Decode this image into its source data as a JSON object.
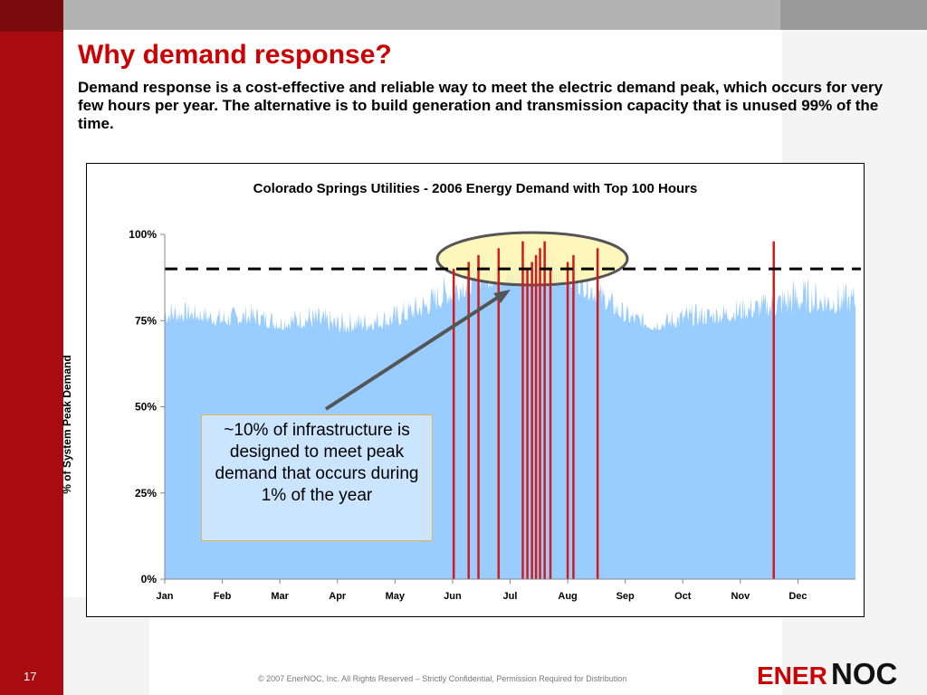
{
  "slide": {
    "title": "Why demand response?",
    "subtitle": "Demand response is a cost-effective and reliable way to meet the electric demand peak, which occurs for very few hours per year. The alternative is to build generation and transmission capacity that is unused 99% of the time.",
    "callout": "~10% of infrastructure is designed to meet peak demand that occurs during 1% of the year",
    "page_number": "17",
    "copyright": "© 2007 EnerNOC, Inc. All Rights Reserved – Strictly Confidential, Permission Required for Distribution",
    "logo_left": "ENER",
    "logo_right": "NOC"
  },
  "colors": {
    "brand_red": "#cc0000",
    "demand_fill": "#99ccff",
    "peak_bar": "#d41a1a",
    "highlight_ellipse": "#fdf6b5"
  },
  "chart_data": {
    "type": "area",
    "title": "Colorado Springs Utilities - 2006 Energy Demand with Top 100 Hours",
    "ylabel": "% of System Peak Demand",
    "xlabel": "",
    "ylim": [
      0,
      100
    ],
    "yticks": [
      "0%",
      "25%",
      "50%",
      "75%",
      "100%"
    ],
    "categories": [
      "Jan",
      "Feb",
      "Mar",
      "Apr",
      "May",
      "Jun",
      "Jul",
      "Aug",
      "Sep",
      "Oct",
      "Nov",
      "Dec"
    ],
    "series": [
      {
        "month": [
          1,
          1.5,
          2,
          2.5,
          3,
          3.5,
          4,
          4.5,
          5,
          5.5,
          6,
          6.5,
          7,
          7.5,
          8,
          8.5,
          9,
          9.5,
          10,
          10.5,
          11,
          11.5,
          12,
          12.5
        ],
        "baseline": [
          74,
          75,
          73,
          74,
          72,
          73,
          71,
          72,
          73,
          76,
          80,
          84,
          85,
          86,
          84,
          80,
          74,
          72,
          73,
          74,
          75,
          76,
          77,
          77
        ],
        "peak": [
          82,
          80,
          79,
          80,
          78,
          80,
          78,
          78,
          80,
          84,
          90,
          95,
          97,
          100,
          96,
          88,
          80,
          76,
          80,
          80,
          82,
          84,
          89,
          86
        ]
      }
    ],
    "reference_line": {
      "value": 90,
      "style": "dashed"
    },
    "top_100_hours_months": [
      6.02,
      6.28,
      6.45,
      6.8,
      7.22,
      7.3,
      7.38,
      7.45,
      7.52,
      7.6,
      7.7,
      8.0,
      8.1,
      8.52,
      11.58
    ]
  }
}
